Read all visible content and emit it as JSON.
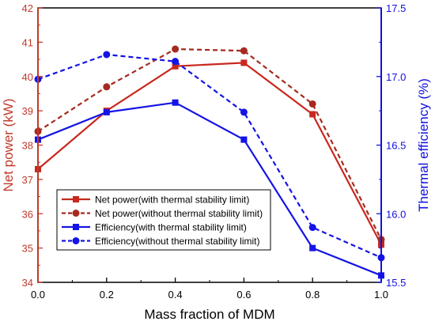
{
  "chart_data": {
    "type": "line",
    "xlabel": "Mass fraction of MDM",
    "y_left_label": "Net power (kW)",
    "y_right_label": "Thermal efficiency (%)",
    "x_range": [
      0.0,
      1.0
    ],
    "y_left_range": [
      34,
      42
    ],
    "y_right_range": [
      15.5,
      17.5
    ],
    "x_ticks": [
      "0.0",
      "0.2",
      "0.4",
      "0.6",
      "0.8",
      "1.0"
    ],
    "y_left_ticks": [
      "34",
      "35",
      "36",
      "37",
      "38",
      "39",
      "40",
      "41",
      "42"
    ],
    "y_right_ticks": [
      "15.5",
      "16.0",
      "16.5",
      "17.0",
      "17.5"
    ],
    "grid": false,
    "legend_position": "bottom-center",
    "colors": {
      "left_axis": "#c0392b",
      "right_axis": "#1010dd"
    },
    "x": [
      0.0,
      0.2,
      0.4,
      0.6,
      0.8,
      1.0
    ],
    "series": [
      {
        "name": "Net power(with thermal stability limit)",
        "axis": "left",
        "color": "#c8281e",
        "line": "solid",
        "marker": "square",
        "values": [
          37.3,
          39.0,
          40.3,
          40.4,
          38.9,
          35.1
        ]
      },
      {
        "name": "Net power(without thermal stability limit)",
        "axis": "left",
        "color": "#a52a1f",
        "line": "dashed",
        "marker": "circle",
        "values": [
          38.4,
          39.7,
          40.8,
          40.75,
          39.2,
          35.25
        ]
      },
      {
        "name": "Efficiency(with thermal stability limit)",
        "axis": "right",
        "color": "#1414e6",
        "line": "solid",
        "marker": "square",
        "values": [
          16.54,
          16.74,
          16.81,
          16.54,
          15.75,
          15.55
        ]
      },
      {
        "name": "Efficiency(without thermal stability limit)",
        "axis": "right",
        "color": "#1414e6",
        "line": "dashed",
        "marker": "circle",
        "values": [
          16.98,
          17.16,
          17.11,
          16.74,
          15.9,
          15.68
        ]
      }
    ]
  }
}
